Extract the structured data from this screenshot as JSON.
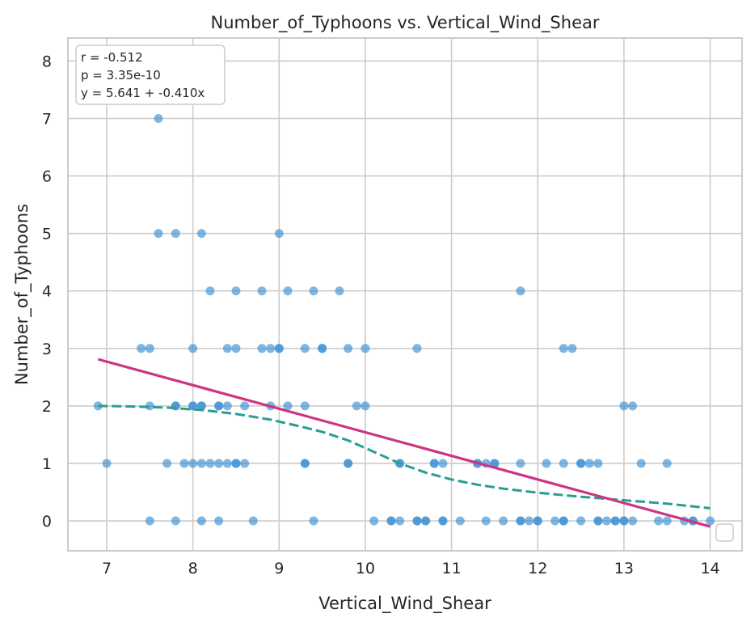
{
  "chart_data": {
    "type": "scatter",
    "title": "Number_of_Typhoons vs. Vertical_Wind_Shear",
    "xlabel": "Vertical_Wind_Shear",
    "ylabel": "Number_of_Typhoons",
    "xlim": [
      6.55,
      14.37
    ],
    "ylim": [
      -0.52,
      8.4
    ],
    "xticks": [
      7,
      8,
      9,
      10,
      11,
      12,
      13,
      14
    ],
    "yticks": [
      0,
      1,
      2,
      3,
      4,
      5,
      6,
      7,
      8
    ],
    "grid": true,
    "legend": "bottom-right",
    "colors": {
      "points": "#3a8fd2",
      "fit_line": "#cc3584",
      "smooth_line": "#2a9d92",
      "grid": "#cccccc",
      "frame": "#cccccc"
    },
    "stats": {
      "r": "r = -0.512",
      "p": "p = 3.35e-10",
      "eq": "y = 5.641 + -0.410x"
    },
    "points": [
      [
        7.6,
        7
      ],
      [
        7.6,
        5
      ],
      [
        7.8,
        5
      ],
      [
        8.1,
        5
      ],
      [
        9.0,
        5
      ],
      [
        8.2,
        4
      ],
      [
        8.5,
        4
      ],
      [
        8.8,
        4
      ],
      [
        9.1,
        4
      ],
      [
        9.4,
        4
      ],
      [
        9.7,
        4
      ],
      [
        11.8,
        4
      ],
      [
        7.4,
        3
      ],
      [
        7.5,
        3
      ],
      [
        8.0,
        3
      ],
      [
        8.4,
        3
      ],
      [
        8.5,
        3
      ],
      [
        8.8,
        3
      ],
      [
        8.9,
        3
      ],
      [
        9.0,
        3
      ],
      [
        9.0,
        3
      ],
      [
        9.3,
        3
      ],
      [
        9.5,
        3
      ],
      [
        9.5,
        3
      ],
      [
        9.8,
        3
      ],
      [
        10.0,
        3
      ],
      [
        10.6,
        3
      ],
      [
        12.3,
        3
      ],
      [
        12.4,
        3
      ],
      [
        6.9,
        2
      ],
      [
        7.5,
        2
      ],
      [
        7.8,
        2
      ],
      [
        7.8,
        2
      ],
      [
        8.0,
        2
      ],
      [
        8.0,
        2
      ],
      [
        8.1,
        2
      ],
      [
        8.1,
        2
      ],
      [
        8.3,
        2
      ],
      [
        8.3,
        2
      ],
      [
        8.4,
        2
      ],
      [
        8.6,
        2
      ],
      [
        8.9,
        2
      ],
      [
        9.1,
        2
      ],
      [
        9.3,
        2
      ],
      [
        9.9,
        2
      ],
      [
        10.0,
        2
      ],
      [
        13.0,
        2
      ],
      [
        13.1,
        2
      ],
      [
        7.0,
        1
      ],
      [
        7.7,
        1
      ],
      [
        7.9,
        1
      ],
      [
        8.0,
        1
      ],
      [
        8.1,
        1
      ],
      [
        8.2,
        1
      ],
      [
        8.3,
        1
      ],
      [
        8.4,
        1
      ],
      [
        8.5,
        1
      ],
      [
        8.5,
        1
      ],
      [
        8.6,
        1
      ],
      [
        9.3,
        1
      ],
      [
        9.3,
        1
      ],
      [
        9.8,
        1
      ],
      [
        9.8,
        1
      ],
      [
        10.4,
        1
      ],
      [
        10.4,
        1
      ],
      [
        10.8,
        1
      ],
      [
        10.8,
        1
      ],
      [
        10.9,
        1
      ],
      [
        11.3,
        1
      ],
      [
        11.3,
        1
      ],
      [
        11.4,
        1
      ],
      [
        11.5,
        1
      ],
      [
        11.5,
        1
      ],
      [
        11.8,
        1
      ],
      [
        12.1,
        1
      ],
      [
        12.3,
        1
      ],
      [
        12.5,
        1
      ],
      [
        12.5,
        1
      ],
      [
        12.6,
        1
      ],
      [
        12.7,
        1
      ],
      [
        13.2,
        1
      ],
      [
        13.5,
        1
      ],
      [
        7.5,
        0
      ],
      [
        7.8,
        0
      ],
      [
        8.1,
        0
      ],
      [
        8.3,
        0
      ],
      [
        8.7,
        0
      ],
      [
        9.4,
        0
      ],
      [
        10.1,
        0
      ],
      [
        10.3,
        0
      ],
      [
        10.3,
        0
      ],
      [
        10.4,
        0
      ],
      [
        10.6,
        0
      ],
      [
        10.6,
        0
      ],
      [
        10.7,
        0
      ],
      [
        10.7,
        0
      ],
      [
        10.9,
        0
      ],
      [
        10.9,
        0
      ],
      [
        11.1,
        0
      ],
      [
        11.4,
        0
      ],
      [
        11.6,
        0
      ],
      [
        11.8,
        0
      ],
      [
        11.8,
        0
      ],
      [
        11.9,
        0
      ],
      [
        12.0,
        0
      ],
      [
        12.0,
        0
      ],
      [
        12.2,
        0
      ],
      [
        12.3,
        0
      ],
      [
        12.3,
        0
      ],
      [
        12.5,
        0
      ],
      [
        12.7,
        0
      ],
      [
        12.7,
        0
      ],
      [
        12.8,
        0
      ],
      [
        12.9,
        0
      ],
      [
        12.9,
        0
      ],
      [
        13.0,
        0
      ],
      [
        13.0,
        0
      ],
      [
        13.1,
        0
      ],
      [
        13.4,
        0
      ],
      [
        13.5,
        0
      ],
      [
        13.7,
        0
      ],
      [
        13.8,
        0
      ],
      [
        13.8,
        0
      ],
      [
        14.0,
        0
      ]
    ],
    "fit_line": {
      "intercept": 5.641,
      "slope": -0.41,
      "x": [
        6.9,
        14.0
      ]
    },
    "smooth_line": {
      "x": [
        6.9,
        7.3,
        7.7,
        8.1,
        8.5,
        8.9,
        9.2,
        9.5,
        9.8,
        10.1,
        10.4,
        10.7,
        11.0,
        11.3,
        11.6,
        12.0,
        12.5,
        13.0,
        13.5,
        14.0
      ],
      "y": [
        2.0,
        1.99,
        1.97,
        1.93,
        1.86,
        1.76,
        1.66,
        1.55,
        1.4,
        1.2,
        1.0,
        0.84,
        0.72,
        0.63,
        0.56,
        0.49,
        0.42,
        0.36,
        0.3,
        0.22
      ]
    }
  }
}
